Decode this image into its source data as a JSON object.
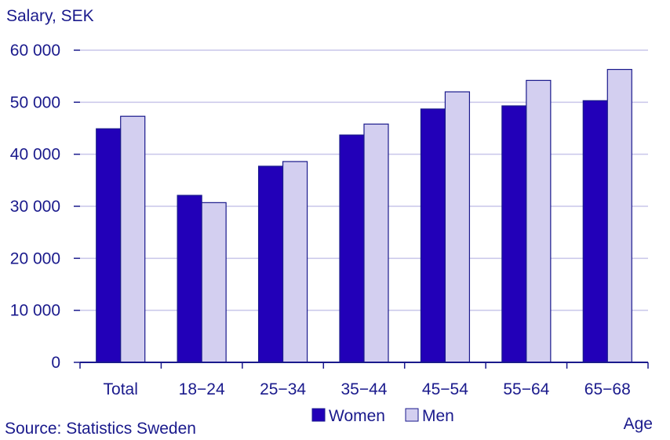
{
  "chart_data": {
    "type": "bar",
    "ylabel": "Salary, SEK",
    "xlabel": "Age",
    "categories": [
      "Total",
      "18−24",
      "25−34",
      "35−44",
      "45−54",
      "55−64",
      "65−68"
    ],
    "series": [
      {
        "name": "Women",
        "values": [
          44900,
          32100,
          37700,
          43700,
          48700,
          49300,
          50300
        ],
        "color": "#2200b8"
      },
      {
        "name": "Men",
        "values": [
          47300,
          30700,
          38600,
          45800,
          52000,
          54200,
          56300
        ],
        "color": "#d3cff0"
      }
    ],
    "ylim": [
      0,
      60000
    ],
    "yticks": [
      "0",
      "10 000",
      "20 000",
      "30 000",
      "40 000",
      "50 000",
      "60 000"
    ],
    "grid": true,
    "legend_position": "bottom-center"
  },
  "source": "Source: Statistics Sweden",
  "colors": {
    "text": "#1a1a8c",
    "axis": "#1a1a8c",
    "grid": "#c9c6ea",
    "bar_stroke": "#1a1a8c"
  }
}
